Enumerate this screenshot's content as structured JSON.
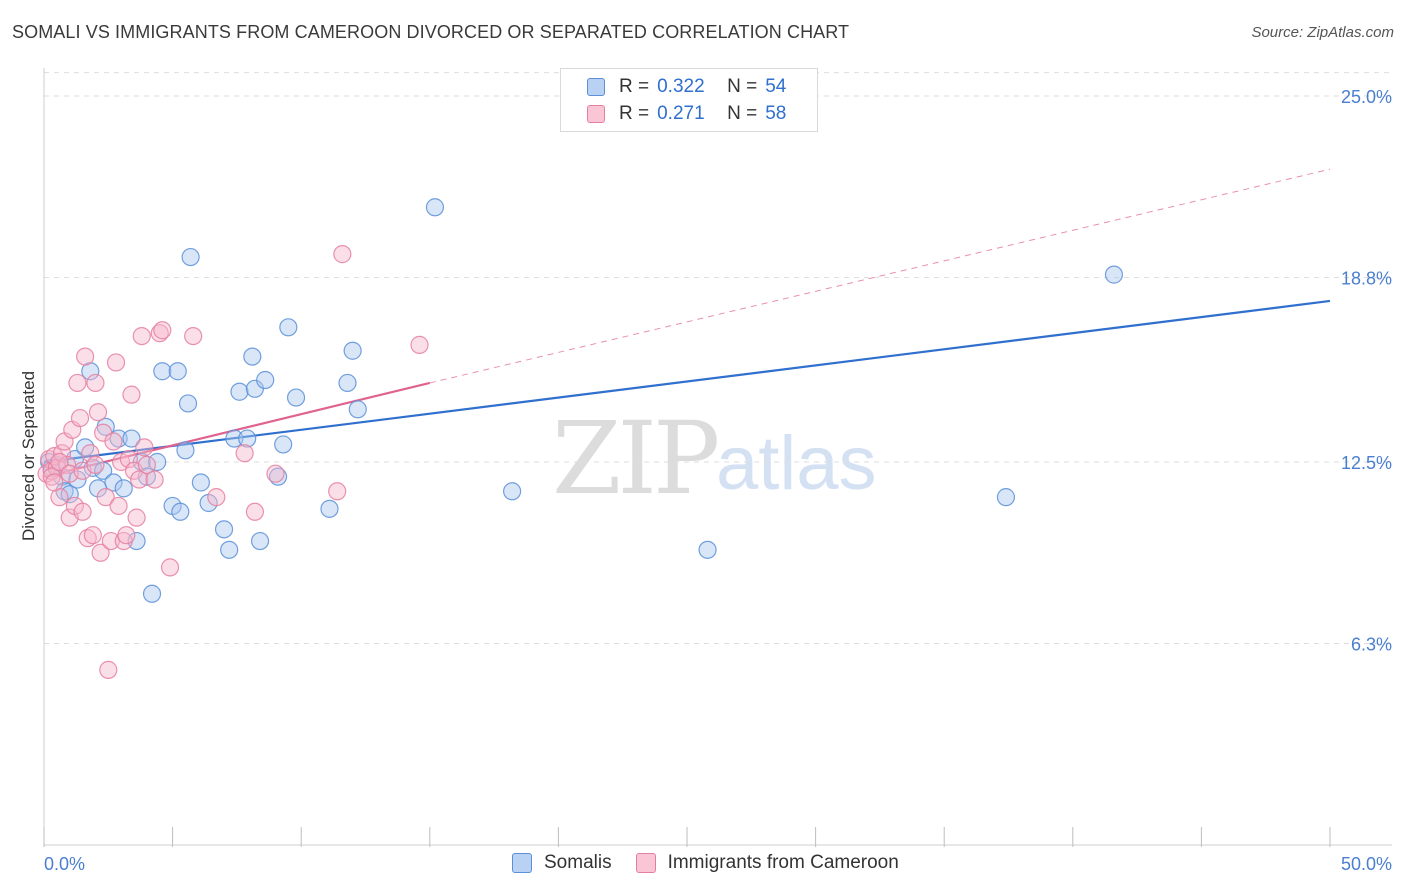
{
  "title": "SOMALI VS IMMIGRANTS FROM CAMEROON DIVORCED OR SEPARATED CORRELATION CHART",
  "source": "Source: ZipAtlas.com",
  "watermark": {
    "zip": "ZIP",
    "atlas": "atlas"
  },
  "legend_top": {
    "rows": [
      {
        "r_label": "R =",
        "r_value": "0.322",
        "n_label": "N =",
        "n_value": "54"
      },
      {
        "r_label": "R =",
        "r_value": "0.271",
        "n_label": "N =",
        "n_value": "58"
      }
    ]
  },
  "legend_bottom": [
    "Somalis",
    "Immigrants from Cameroon"
  ],
  "colors": {
    "somalis_fill": "#a9c8f0",
    "somalis_stroke": "#5b8fd8",
    "somalis_line": "#2f6fce",
    "cameroon_fill": "#f7b8cb",
    "cameroon_stroke": "#e57fa0",
    "cameroon_line": "#e0628e",
    "grid": "#dedede",
    "tick_text": "#4a7fd0"
  },
  "chart_data": {
    "type": "scatter",
    "title": "SOMALI VS IMMIGRANTS FROM CAMEROON DIVORCED OR SEPARATED CORRELATION CHART",
    "xlabel": "",
    "ylabel": "Divorced or Separated",
    "xlim": [
      0,
      50
    ],
    "ylim": [
      0,
      25.8
    ],
    "x_tick_labels": [
      "0.0%",
      "50.0%"
    ],
    "y_ticks": [
      6.3,
      12.5,
      18.8,
      25.0
    ],
    "y_tick_labels": [
      "6.3%",
      "12.5%",
      "18.8%",
      "25.0%"
    ],
    "grid": "horizontal dashed",
    "legend_position": "top-center",
    "series": [
      {
        "name": "Somalis",
        "points": [
          [
            0.2,
            12.5
          ],
          [
            0.3,
            12.3
          ],
          [
            0.5,
            12.4
          ],
          [
            0.7,
            12.0
          ],
          [
            0.8,
            11.5
          ],
          [
            1.0,
            11.4
          ],
          [
            1.2,
            12.6
          ],
          [
            1.3,
            11.9
          ],
          [
            1.6,
            13.0
          ],
          [
            1.8,
            15.6
          ],
          [
            1.9,
            12.3
          ],
          [
            2.1,
            11.6
          ],
          [
            2.3,
            12.2
          ],
          [
            2.4,
            13.7
          ],
          [
            2.7,
            11.8
          ],
          [
            2.9,
            13.3
          ],
          [
            3.1,
            11.6
          ],
          [
            3.4,
            13.3
          ],
          [
            3.6,
            9.8
          ],
          [
            3.8,
            12.5
          ],
          [
            4.0,
            12.0
          ],
          [
            4.2,
            8.0
          ],
          [
            4.4,
            12.5
          ],
          [
            4.6,
            15.6
          ],
          [
            5.0,
            11.0
          ],
          [
            5.2,
            15.6
          ],
          [
            5.3,
            10.8
          ],
          [
            5.5,
            12.9
          ],
          [
            5.6,
            14.5
          ],
          [
            5.7,
            19.5
          ],
          [
            6.1,
            11.8
          ],
          [
            6.4,
            11.1
          ],
          [
            7.0,
            10.2
          ],
          [
            7.2,
            9.5
          ],
          [
            7.4,
            13.3
          ],
          [
            7.6,
            14.9
          ],
          [
            7.9,
            13.3
          ],
          [
            8.1,
            16.1
          ],
          [
            8.2,
            15.0
          ],
          [
            8.4,
            9.8
          ],
          [
            8.6,
            15.3
          ],
          [
            9.1,
            12.0
          ],
          [
            9.3,
            13.1
          ],
          [
            9.5,
            17.1
          ],
          [
            9.8,
            14.7
          ],
          [
            11.1,
            10.9
          ],
          [
            11.8,
            15.2
          ],
          [
            12.0,
            16.3
          ],
          [
            12.2,
            14.3
          ],
          [
            15.2,
            21.2
          ],
          [
            18.2,
            11.5
          ],
          [
            25.8,
            9.5
          ],
          [
            37.4,
            11.3
          ],
          [
            41.6,
            18.9
          ]
        ]
      },
      {
        "name": "Immigrants from Cameroon",
        "points": [
          [
            0.1,
            12.1
          ],
          [
            0.2,
            12.6
          ],
          [
            0.3,
            12.2
          ],
          [
            0.4,
            12.7
          ],
          [
            0.5,
            12.3
          ],
          [
            0.6,
            11.3
          ],
          [
            0.7,
            12.8
          ],
          [
            0.8,
            13.2
          ],
          [
            0.9,
            12.4
          ],
          [
            1.0,
            10.6
          ],
          [
            1.1,
            13.6
          ],
          [
            1.2,
            11.0
          ],
          [
            1.3,
            15.2
          ],
          [
            1.4,
            14.0
          ],
          [
            1.5,
            10.8
          ],
          [
            1.6,
            16.1
          ],
          [
            1.7,
            9.9
          ],
          [
            1.8,
            12.8
          ],
          [
            1.9,
            10.0
          ],
          [
            2.0,
            15.2
          ],
          [
            2.1,
            14.2
          ],
          [
            2.2,
            9.4
          ],
          [
            2.3,
            13.5
          ],
          [
            2.4,
            11.3
          ],
          [
            2.5,
            5.4
          ],
          [
            2.6,
            9.8
          ],
          [
            2.7,
            13.2
          ],
          [
            2.8,
            15.9
          ],
          [
            2.9,
            11.0
          ],
          [
            3.0,
            12.5
          ],
          [
            3.1,
            9.8
          ],
          [
            3.2,
            10.0
          ],
          [
            3.3,
            12.6
          ],
          [
            3.4,
            14.8
          ],
          [
            3.5,
            12.2
          ],
          [
            3.6,
            10.6
          ],
          [
            3.7,
            11.9
          ],
          [
            3.8,
            16.8
          ],
          [
            3.9,
            13.0
          ],
          [
            4.0,
            12.4
          ],
          [
            4.3,
            11.9
          ],
          [
            4.5,
            16.9
          ],
          [
            4.6,
            17.0
          ],
          [
            4.9,
            8.9
          ],
          [
            5.8,
            16.8
          ],
          [
            6.7,
            11.3
          ],
          [
            7.8,
            12.8
          ],
          [
            8.2,
            10.8
          ],
          [
            9.0,
            12.1
          ],
          [
            11.4,
            11.5
          ],
          [
            11.6,
            19.6
          ],
          [
            14.6,
            16.5
          ],
          [
            0.3,
            12.0
          ],
          [
            0.6,
            12.5
          ],
          [
            1.0,
            12.1
          ],
          [
            1.5,
            12.2
          ],
          [
            2.0,
            12.4
          ],
          [
            0.4,
            11.8
          ]
        ]
      }
    ],
    "trendlines": [
      {
        "series": "Somalis",
        "x": [
          0,
          50
        ],
        "y": [
          12.5,
          18.0
        ],
        "style": "solid"
      },
      {
        "series": "Immigrants from Cameroon",
        "x": [
          0,
          15
        ],
        "y": [
          12.0,
          15.2
        ],
        "style": "solid"
      },
      {
        "series": "Immigrants from Cameroon",
        "x": [
          15,
          50
        ],
        "y": [
          15.2,
          22.5
        ],
        "style": "dashed"
      }
    ]
  }
}
